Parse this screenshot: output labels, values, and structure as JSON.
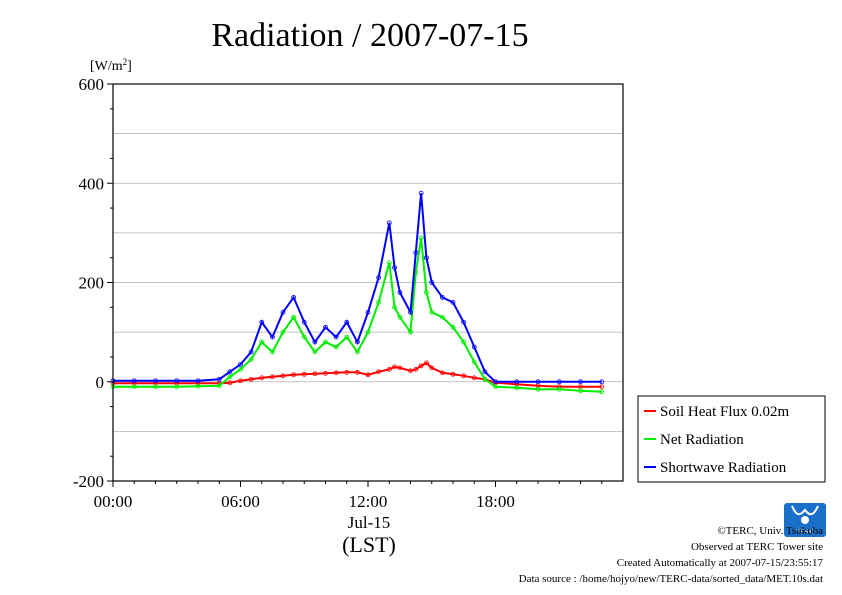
{
  "chart_data": {
    "type": "line",
    "title": "Radiation / 2007-07-15",
    "ylabel": "[W/m2]",
    "ylabel_base": "[W/m",
    "ylabel_sup": "2",
    "ylabel_close": "]",
    "ylim": [
      -200,
      600
    ],
    "yticks": [
      600,
      400,
      200,
      0,
      -200
    ],
    "ytick_labels": [
      "600",
      "400",
      "200",
      "0",
      "-200"
    ],
    "xlim": [
      0,
      24
    ],
    "xticks": [
      0,
      6,
      12,
      18
    ],
    "xtick_labels": [
      "00:00",
      "06:00",
      "12:00",
      "18:00"
    ],
    "date_label": "Jul-15",
    "xlabel": "(LST)",
    "grid": true,
    "legend_position": "right",
    "x": [
      0,
      1,
      2,
      3,
      4,
      5,
      5.5,
      6,
      6.5,
      7,
      7.5,
      8,
      8.5,
      9,
      9.5,
      10,
      10.5,
      11,
      11.5,
      12,
      12.5,
      13,
      13.25,
      13.5,
      14,
      14.25,
      14.5,
      14.75,
      15,
      15.5,
      16,
      16.5,
      17,
      17.5,
      18,
      19,
      20,
      21,
      22,
      23
    ],
    "series": [
      {
        "name": "Soil Heat Flux 0.02m",
        "color": "#ff0000",
        "values": [
          -3,
          -3,
          -3,
          -3,
          -3,
          -3,
          -2,
          2,
          5,
          8,
          10,
          12,
          14,
          15,
          16,
          17,
          18,
          19,
          19,
          14,
          20,
          25,
          30,
          28,
          22,
          25,
          32,
          38,
          28,
          18,
          15,
          12,
          8,
          5,
          -2,
          -5,
          -8,
          -10,
          -10,
          -10
        ]
      },
      {
        "name": "Net Radiation",
        "color": "#00ee00",
        "values": [
          -10,
          -10,
          -10,
          -10,
          -9,
          -8,
          10,
          25,
          45,
          80,
          60,
          100,
          130,
          90,
          60,
          80,
          70,
          90,
          60,
          100,
          160,
          240,
          150,
          130,
          100,
          220,
          290,
          180,
          140,
          130,
          110,
          80,
          40,
          5,
          -10,
          -12,
          -15,
          -15,
          -18,
          -20
        ]
      },
      {
        "name": "Shortwave Radiation",
        "color": "#0000ff",
        "values": [
          2,
          2,
          2,
          2,
          2,
          5,
          20,
          35,
          60,
          120,
          90,
          140,
          170,
          120,
          80,
          110,
          90,
          120,
          80,
          140,
          210,
          320,
          230,
          180,
          140,
          260,
          380,
          250,
          200,
          170,
          160,
          120,
          70,
          20,
          0,
          0,
          0,
          0,
          0,
          0
        ]
      }
    ]
  },
  "footer": {
    "copyright": "©TERC, Univ. Tsukuba",
    "observed": "Observed at TERC Tower site",
    "created": "Created Automatically at 2007-07-15/23:55:17",
    "source": "Data source : /home/hojyo/new/TERC-data/sorted_data/MET.10s.dat",
    "logo_text": "TERC"
  }
}
